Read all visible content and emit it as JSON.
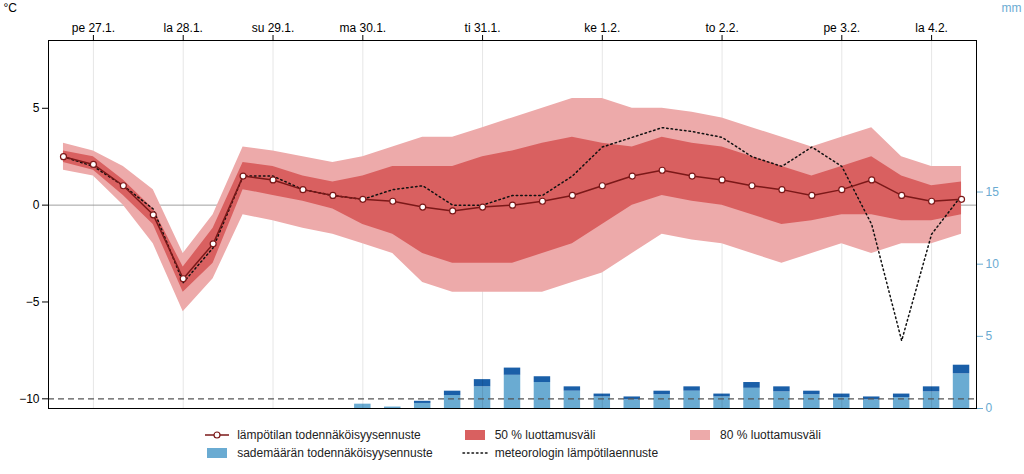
{
  "chart_data": {
    "type": "line",
    "ylabel": "°C",
    "y2label": "mm",
    "x": [
      0,
      1,
      2,
      3,
      4,
      5,
      6,
      7,
      8,
      9,
      10,
      11,
      12,
      13,
      14,
      15,
      16,
      17,
      18,
      19,
      20,
      21,
      22,
      23,
      24,
      25,
      26,
      27,
      28,
      29,
      30
    ],
    "xlim": [
      -0.5,
      30.5
    ],
    "xticks": [
      {
        "value": 1,
        "label": "pe 27.1."
      },
      {
        "value": 4,
        "label": "la 28.1."
      },
      {
        "value": 7,
        "label": "su 29.1."
      },
      {
        "value": 10,
        "label": "ma 30.1."
      },
      {
        "value": 14,
        "label": "ti 31.1."
      },
      {
        "value": 18,
        "label": "ke 1.2."
      },
      {
        "value": 22,
        "label": "to 2.2."
      },
      {
        "value": 26,
        "label": "pe 3.2."
      },
      {
        "value": 29,
        "label": "la 4.2."
      }
    ],
    "ylim": [
      -10.5,
      8.5
    ],
    "yticks": [
      -10,
      -5,
      0,
      5
    ],
    "y2lim": [
      0,
      25.5
    ],
    "y2ticks": [
      0,
      5,
      10,
      15
    ],
    "grid": "x",
    "legend": "bottom",
    "stacked": true,
    "hlines": [
      {
        "value": 0,
        "color": "#888888",
        "line_style": "solid"
      },
      {
        "value": -10,
        "color": "#555555",
        "line_style": "dashed"
      }
    ],
    "series": [
      {
        "name": "lämpötilan todennäköisyysennuste",
        "type": "line",
        "color": "#7B1818",
        "marker": "circle",
        "values": [
          2.5,
          2.1,
          1.0,
          -0.5,
          -3.8,
          -2.0,
          1.5,
          1.3,
          0.8,
          0.5,
          0.3,
          0.2,
          -0.1,
          -0.3,
          -0.1,
          0.0,
          0.2,
          0.5,
          1.0,
          1.5,
          1.8,
          1.5,
          1.3,
          1.0,
          0.8,
          0.5,
          0.8,
          1.3,
          0.5,
          0.2,
          0.3
        ]
      },
      {
        "name": "50 % luottamusväli",
        "type": "band",
        "color": "#D96060",
        "lower": [
          2.2,
          1.8,
          0.5,
          -1.0,
          -4.5,
          -3.0,
          0.8,
          0.5,
          0.2,
          -0.2,
          -1.0,
          -1.5,
          -2.5,
          -3.0,
          -3.0,
          -3.0,
          -2.5,
          -2.0,
          -1.0,
          0.0,
          0.5,
          0.2,
          0.0,
          -0.5,
          -1.0,
          -0.8,
          -0.5,
          -0.5,
          -0.8,
          -0.8,
          -0.5
        ],
        "upper": [
          2.8,
          2.5,
          1.3,
          -0.2,
          -3.2,
          -1.2,
          2.2,
          2.0,
          1.5,
          1.2,
          1.5,
          2.0,
          2.0,
          2.0,
          2.5,
          2.8,
          3.2,
          3.5,
          3.2,
          3.0,
          3.5,
          3.2,
          3.0,
          2.5,
          2.0,
          1.5,
          2.0,
          2.5,
          1.5,
          1.0,
          1.2
        ]
      },
      {
        "name": "80 % luottamusväli",
        "type": "band",
        "color": "#EDAAAA",
        "lower": [
          1.8,
          1.5,
          0.0,
          -2.0,
          -5.5,
          -3.8,
          -0.5,
          -0.8,
          -1.2,
          -1.5,
          -2.0,
          -2.5,
          -4.0,
          -4.5,
          -4.5,
          -4.5,
          -4.5,
          -4.0,
          -3.5,
          -2.5,
          -1.5,
          -1.8,
          -2.0,
          -2.5,
          -3.0,
          -2.5,
          -2.0,
          -2.5,
          -2.0,
          -2.0,
          -1.5
        ],
        "upper": [
          3.2,
          2.8,
          2.0,
          0.8,
          -2.5,
          -0.5,
          3.0,
          2.8,
          2.5,
          2.2,
          2.5,
          3.0,
          3.5,
          3.5,
          4.0,
          4.5,
          5.0,
          5.5,
          5.5,
          5.0,
          5.0,
          4.8,
          4.5,
          4.0,
          3.5,
          3.0,
          3.5,
          4.0,
          2.5,
          2.0,
          2.0
        ]
      },
      {
        "name": "sademäärän todennäköisyysennuste",
        "type": "bar",
        "axis": "y2",
        "color": "#6aabd2",
        "values": [
          0,
          0,
          0,
          0,
          0,
          0,
          0,
          0,
          0,
          0,
          0.3,
          0.1,
          0.35,
          0.9,
          1.5,
          2.3,
          1.8,
          1.2,
          0.8,
          0.6,
          0.95,
          1.2,
          0.8,
          1.4,
          1.15,
          0.95,
          0.75,
          0.6,
          0.75,
          1.15,
          2.4
        ]
      },
      {
        "type": "bar",
        "axis": "y2",
        "color": "#1a5fa8",
        "values": [
          0,
          0,
          0,
          0,
          0,
          0,
          0,
          0,
          0,
          0,
          0,
          0,
          0.15,
          0.3,
          0.5,
          0.5,
          0.4,
          0.3,
          0.2,
          0.2,
          0.25,
          0.3,
          0.2,
          0.4,
          0.35,
          0.25,
          0.25,
          0.2,
          0.25,
          0.35,
          0.6
        ]
      },
      {
        "name": "meteorologin lämpötilaennuste",
        "type": "line",
        "line_style": "dotted",
        "color": "#111111",
        "values": [
          2.5,
          2.0,
          1.0,
          -0.2,
          -4.0,
          -2.2,
          1.5,
          1.5,
          0.8,
          0.5,
          0.3,
          0.8,
          1.0,
          0.0,
          0.0,
          0.5,
          0.5,
          1.5,
          3.0,
          3.5,
          4.0,
          3.8,
          3.5,
          2.5,
          2.0,
          3.0,
          2.0,
          -1.0,
          -7.0,
          -1.5,
          0.5
        ]
      }
    ]
  }
}
